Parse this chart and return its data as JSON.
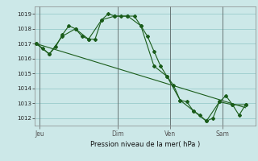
{
  "background_color": "#cce8e8",
  "grid_color": "#99cccc",
  "line_color": "#1a5c1a",
  "ylim": [
    1011.5,
    1019.5
  ],
  "yticks": [
    1012,
    1013,
    1014,
    1015,
    1016,
    1017,
    1018,
    1019
  ],
  "xlabel": "Pression niveau de la mer( hPa )",
  "xtick_labels": [
    "Jeu",
    "Dim",
    "Ven",
    "Sam"
  ],
  "xtick_positions": [
    0.5,
    12.5,
    20.5,
    28.5
  ],
  "xlim": [
    -0.2,
    33.5
  ],
  "series1": {
    "x": [
      0,
      1,
      2,
      3,
      4,
      5,
      6,
      7,
      8,
      9,
      10,
      11,
      12,
      13,
      14,
      15,
      16,
      17,
      18,
      19,
      20,
      21,
      22,
      23,
      24,
      25,
      26,
      27,
      28,
      29,
      30,
      31,
      32
    ],
    "y": [
      1017.0,
      1016.7,
      1016.3,
      1016.8,
      1017.6,
      1018.2,
      1018.0,
      1017.5,
      1017.3,
      1017.3,
      1018.6,
      1019.0,
      1018.85,
      1018.85,
      1018.85,
      1018.85,
      1018.2,
      1017.5,
      1016.5,
      1015.5,
      1014.8,
      1014.2,
      1013.2,
      1013.1,
      1012.5,
      1012.2,
      1011.8,
      1012.0,
      1013.1,
      1013.5,
      1012.9,
      1012.2,
      1012.9
    ]
  },
  "series2": {
    "x": [
      0,
      2,
      4,
      6,
      8,
      10,
      12,
      14,
      16,
      18,
      20,
      22,
      24,
      26,
      28,
      30,
      32
    ],
    "y": [
      1017.0,
      1016.3,
      1017.5,
      1018.0,
      1017.3,
      1018.6,
      1018.85,
      1018.85,
      1018.2,
      1015.5,
      1014.8,
      1013.2,
      1012.5,
      1011.8,
      1013.1,
      1012.9,
      1012.9
    ]
  },
  "series3_x": [
    0,
    32
  ],
  "series3_y": [
    1017.0,
    1012.7
  ],
  "vline_positions": [
    0.5,
    12.5,
    20.5,
    28.5
  ],
  "marker_size": 2.0,
  "line_width": 0.8
}
